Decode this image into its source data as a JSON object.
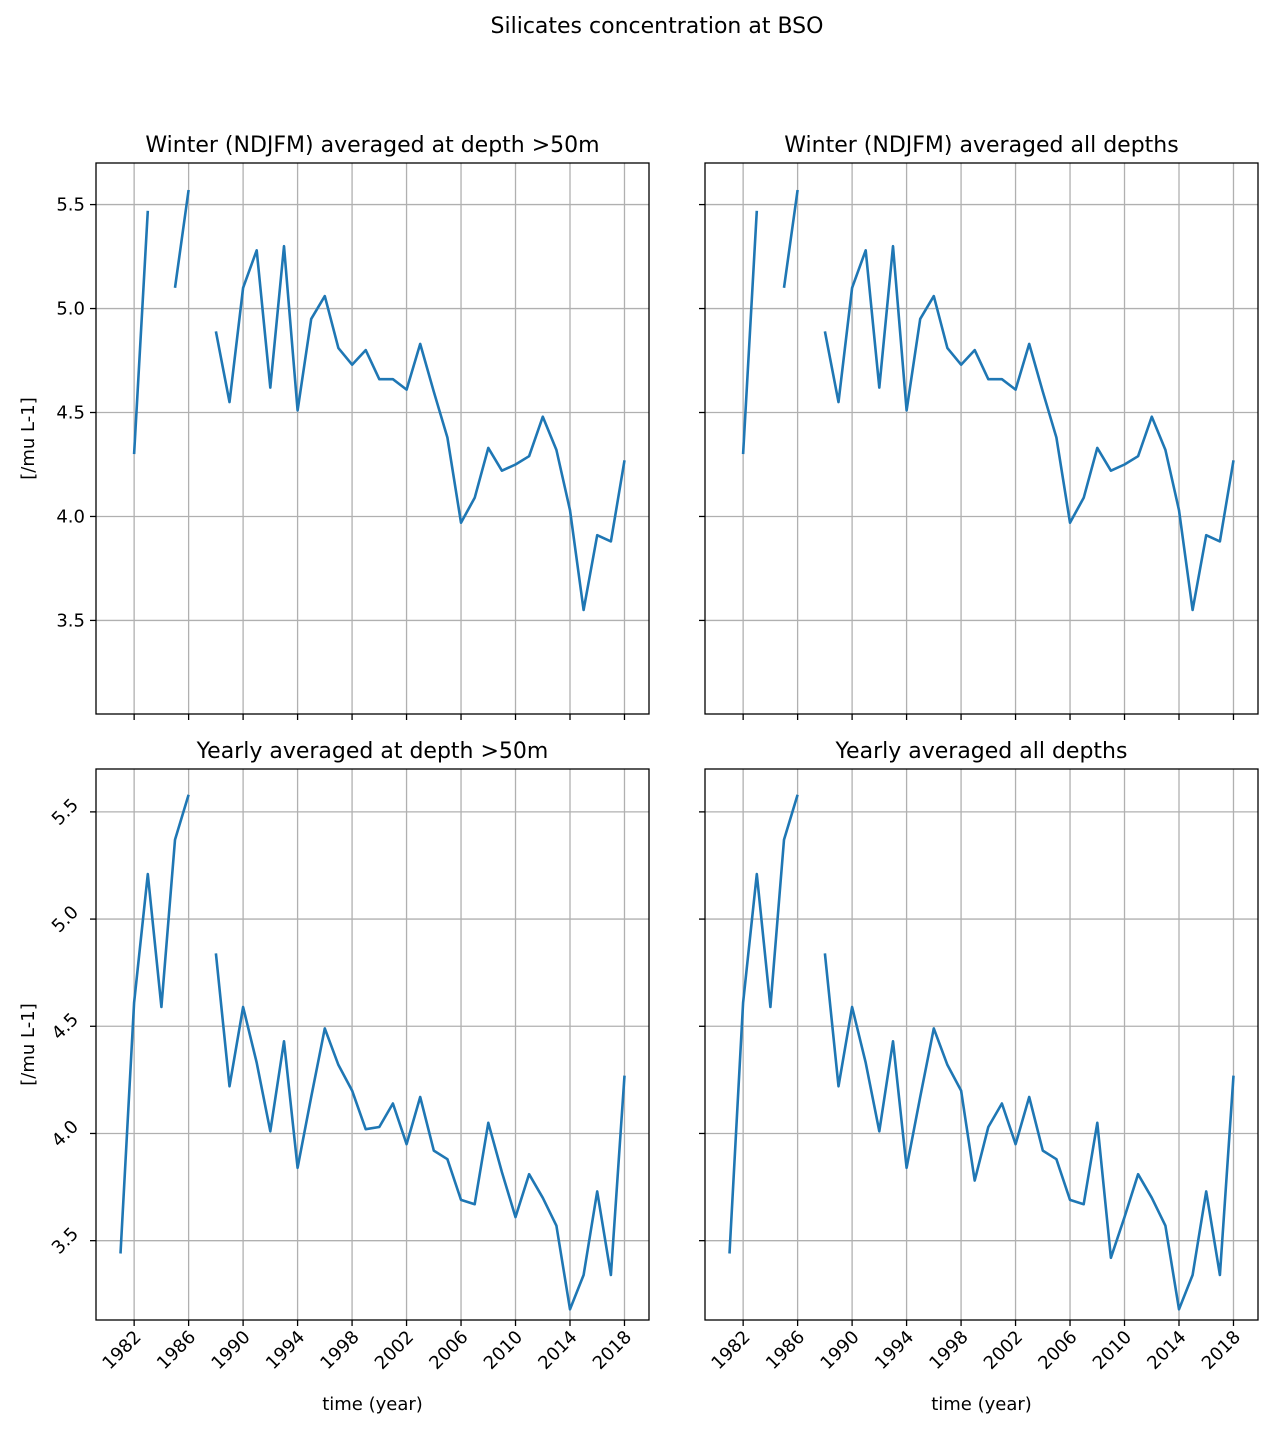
{
  "figure": {
    "suptitle": "Silicates concentration at BSO",
    "line_color": "#1f77b4",
    "grid": true
  },
  "chart_data": [
    {
      "type": "line",
      "title": "Winter (NDJFM) averaged at depth >50m",
      "xlabel": "",
      "ylabel": "[/mu L-1]",
      "xlim": [
        1979.2,
        2019.8
      ],
      "ylim": [
        3.05,
        5.7
      ],
      "xticks": [
        "1982",
        "1986",
        "1990",
        "1994",
        "1998",
        "2002",
        "2006",
        "2010",
        "2014",
        "2018"
      ],
      "yticks": [
        "3.5",
        "4.0",
        "4.5",
        "5.0",
        "5.5"
      ],
      "show_xticklabels": false,
      "show_yticklabels": true,
      "x": [
        1982,
        1983,
        1984,
        1985,
        1986,
        1987,
        1988,
        1989,
        1990,
        1991,
        1992,
        1993,
        1994,
        1995,
        1996,
        1997,
        1998,
        1999,
        2000,
        2001,
        2002,
        2003,
        2004,
        2005,
        2006,
        2007,
        2008,
        2009,
        2010,
        2011,
        2012,
        2013,
        2014,
        2015,
        2016,
        2017,
        2018
      ],
      "y": [
        4.3,
        5.47,
        null,
        5.1,
        5.57,
        null,
        4.89,
        4.55,
        5.1,
        5.28,
        4.62,
        5.3,
        4.51,
        4.95,
        5.06,
        4.81,
        4.73,
        4.8,
        4.66,
        4.66,
        4.61,
        4.83,
        4.6,
        4.38,
        3.97,
        4.09,
        4.33,
        4.22,
        4.25,
        4.29,
        4.48,
        4.32,
        4.03,
        3.55,
        3.91,
        3.88,
        4.27
      ]
    },
    {
      "type": "line",
      "title": "Winter (NDJFM) averaged all depths",
      "xlabel": "",
      "ylabel": "",
      "xlim": [
        1979.2,
        2019.8
      ],
      "ylim": [
        3.05,
        5.7
      ],
      "xticks": [
        "1982",
        "1986",
        "1990",
        "1994",
        "1998",
        "2002",
        "2006",
        "2010",
        "2014",
        "2018"
      ],
      "yticks": [
        "3.5",
        "4.0",
        "4.5",
        "5.0",
        "5.5"
      ],
      "show_xticklabels": false,
      "show_yticklabels": false,
      "x": [
        1982,
        1983,
        1984,
        1985,
        1986,
        1987,
        1988,
        1989,
        1990,
        1991,
        1992,
        1993,
        1994,
        1995,
        1996,
        1997,
        1998,
        1999,
        2000,
        2001,
        2002,
        2003,
        2004,
        2005,
        2006,
        2007,
        2008,
        2009,
        2010,
        2011,
        2012,
        2013,
        2014,
        2015,
        2016,
        2017,
        2018
      ],
      "y": [
        4.3,
        5.47,
        null,
        5.1,
        5.57,
        null,
        4.89,
        4.55,
        5.1,
        5.28,
        4.62,
        5.3,
        4.51,
        4.95,
        5.06,
        4.81,
        4.73,
        4.8,
        4.66,
        4.66,
        4.61,
        4.83,
        4.6,
        4.38,
        3.97,
        4.09,
        4.33,
        4.22,
        4.25,
        4.29,
        4.48,
        4.32,
        4.03,
        3.55,
        3.91,
        3.88,
        4.27
      ]
    },
    {
      "type": "line",
      "title": "Yearly averaged at depth >50m",
      "xlabel": "time (year)",
      "ylabel": "[/mu L-1]",
      "xlim": [
        1979.2,
        2019.8
      ],
      "ylim": [
        3.13,
        5.7
      ],
      "xticks": [
        "1982",
        "1986",
        "1990",
        "1994",
        "1998",
        "2002",
        "2006",
        "2010",
        "2014",
        "2018"
      ],
      "yticks": [
        "3.5",
        "4.0",
        "4.5",
        "5.0",
        "5.5"
      ],
      "show_xticklabels": true,
      "show_yticklabels": true,
      "x": [
        1981,
        1982,
        1983,
        1984,
        1985,
        1986,
        1987,
        1988,
        1989,
        1990,
        1991,
        1992,
        1993,
        1994,
        1995,
        1996,
        1997,
        1998,
        1999,
        2000,
        2001,
        2002,
        2003,
        2004,
        2005,
        2006,
        2007,
        2008,
        2009,
        2010,
        2011,
        2012,
        2013,
        2014,
        2015,
        2016,
        2017,
        2018
      ],
      "y": [
        3.44,
        4.61,
        5.21,
        4.59,
        5.37,
        5.58,
        null,
        4.84,
        4.22,
        4.59,
        4.33,
        4.01,
        4.43,
        3.84,
        4.17,
        4.49,
        4.32,
        4.2,
        4.02,
        4.03,
        4.14,
        3.95,
        4.17,
        3.92,
        3.88,
        3.69,
        3.67,
        4.05,
        3.82,
        3.61,
        3.81,
        3.7,
        3.57,
        3.18,
        3.34,
        3.73,
        3.34,
        4.27
      ]
    },
    {
      "type": "line",
      "title": "Yearly averaged all depths",
      "xlabel": "time (year)",
      "ylabel": "",
      "xlim": [
        1979.2,
        2019.8
      ],
      "ylim": [
        3.13,
        5.7
      ],
      "xticks": [
        "1982",
        "1986",
        "1990",
        "1994",
        "1998",
        "2002",
        "2006",
        "2010",
        "2014",
        "2018"
      ],
      "yticks": [
        "3.5",
        "4.0",
        "4.5",
        "5.0",
        "5.5"
      ],
      "show_xticklabels": true,
      "show_yticklabels": false,
      "x": [
        1981,
        1982,
        1983,
        1984,
        1985,
        1986,
        1987,
        1988,
        1989,
        1990,
        1991,
        1992,
        1993,
        1994,
        1995,
        1996,
        1997,
        1998,
        1999,
        2000,
        2001,
        2002,
        2003,
        2004,
        2005,
        2006,
        2007,
        2008,
        2009,
        2010,
        2011,
        2012,
        2013,
        2014,
        2015,
        2016,
        2017,
        2018
      ],
      "y": [
        3.44,
        4.61,
        5.21,
        4.59,
        5.37,
        5.58,
        null,
        4.84,
        4.22,
        4.59,
        4.33,
        4.01,
        4.43,
        3.84,
        4.17,
        4.49,
        4.32,
        4.2,
        3.78,
        4.03,
        4.14,
        3.95,
        4.17,
        3.92,
        3.88,
        3.69,
        3.67,
        4.05,
        3.42,
        3.61,
        3.81,
        3.7,
        3.57,
        3.18,
        3.34,
        3.73,
        3.34,
        4.27
      ]
    }
  ]
}
